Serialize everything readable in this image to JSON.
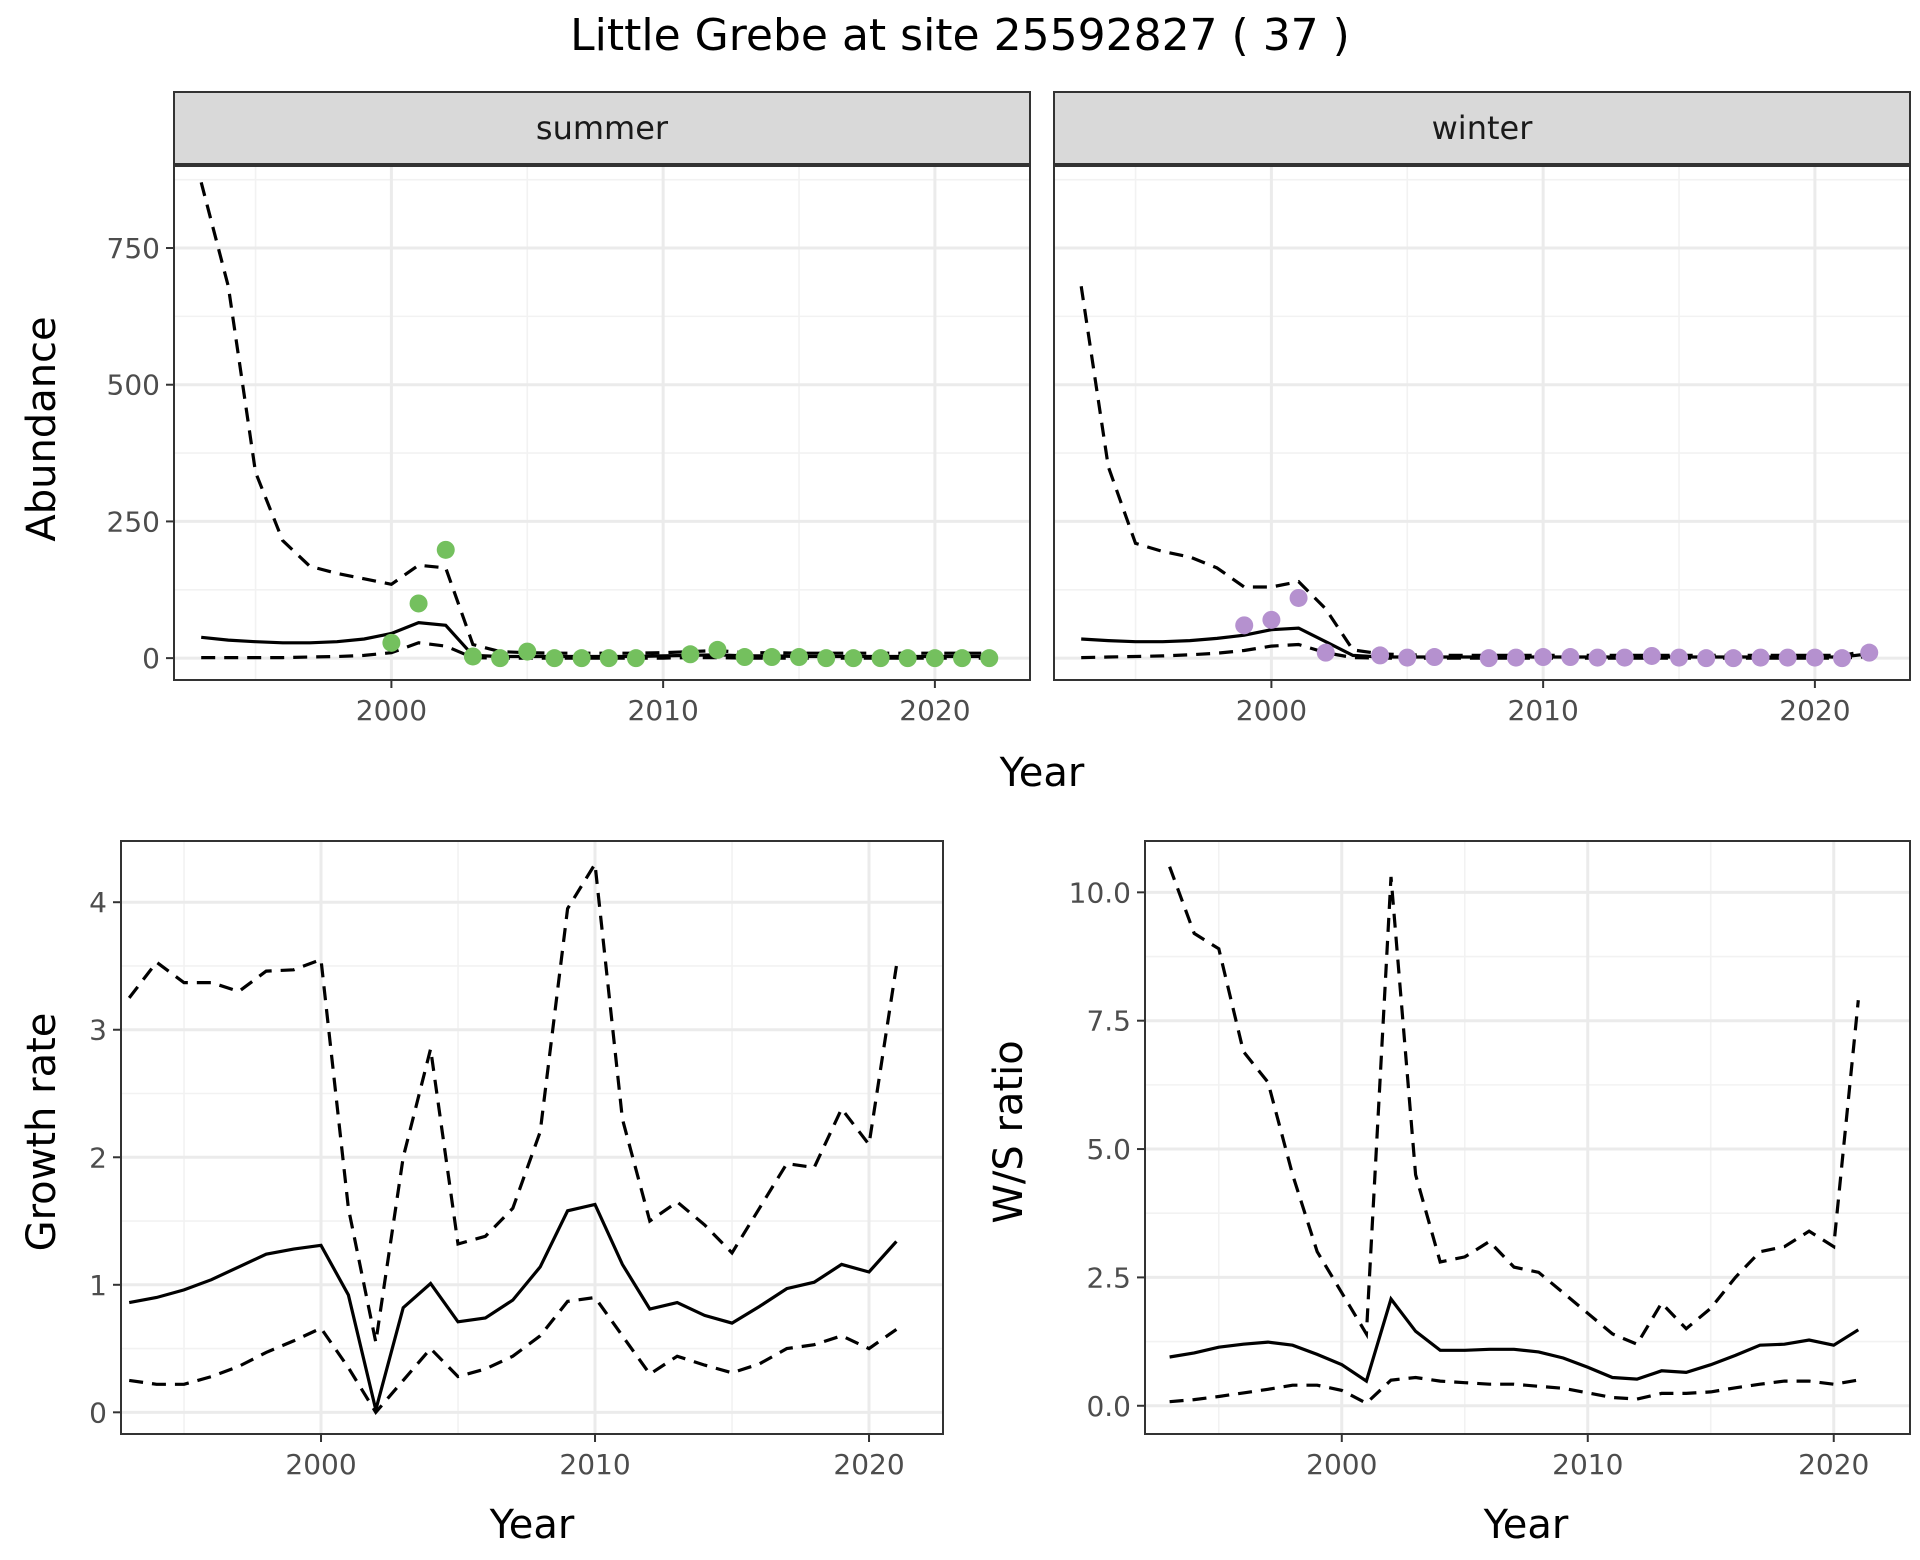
{
  "title": "Little Grebe at site 25592827 ( 37 )",
  "colors": {
    "summer_points": "#74c05e",
    "winter_points": "#b591cf",
    "line": "#000000"
  },
  "chart_data": [
    {
      "type": "line",
      "facet": "summer",
      "xlabel": "Year",
      "ylabel": "Abundance",
      "xlim": [
        1992,
        2023.5
      ],
      "ylim": [
        -40,
        900
      ],
      "xticks": [
        2000,
        2010,
        2020
      ],
      "yticks": [
        0,
        250,
        500,
        750
      ],
      "x": [
        1993,
        1994,
        1995,
        1996,
        1997,
        1998,
        1999,
        2000,
        2001,
        2002,
        2003,
        2004,
        2005,
        2006,
        2007,
        2008,
        2009,
        2010,
        2011,
        2012,
        2013,
        2014,
        2015,
        2016,
        2017,
        2018,
        2019,
        2020,
        2021,
        2022
      ],
      "series": [
        {
          "values": [
            38,
            33,
            30,
            28,
            28,
            30,
            35,
            45,
            65,
            60,
            5,
            3,
            3,
            3,
            3,
            3,
            3,
            4,
            5,
            6,
            4,
            4,
            3,
            3,
            3,
            3,
            3,
            3,
            3,
            3
          ],
          "style": "solid"
        },
        {
          "values": [
            870,
            680,
            340,
            215,
            168,
            155,
            145,
            135,
            170,
            165,
            25,
            12,
            10,
            9,
            9,
            9,
            9,
            10,
            12,
            14,
            10,
            10,
            9,
            9,
            9,
            9,
            9,
            9,
            9,
            9
          ],
          "style": "dashed"
        },
        {
          "values": [
            1,
            1,
            1,
            1,
            2,
            3,
            5,
            10,
            28,
            22,
            1,
            0,
            0,
            0,
            0,
            0,
            0,
            0,
            1,
            1,
            0,
            0,
            0,
            0,
            0,
            0,
            0,
            0,
            0,
            0
          ],
          "style": "dashed"
        }
      ],
      "points": {
        "x": [
          2000,
          2001,
          2002,
          2003,
          2004,
          2005,
          2006,
          2007,
          2008,
          2009,
          2011,
          2012,
          2013,
          2014,
          2015,
          2016,
          2017,
          2018,
          2019,
          2020,
          2021,
          2022
        ],
        "y": [
          28,
          100,
          198,
          3,
          0,
          12,
          0,
          0,
          0,
          0,
          7,
          15,
          2,
          2,
          2,
          0,
          0,
          0,
          0,
          0,
          0,
          0
        ]
      }
    },
    {
      "type": "line",
      "facet": "winter",
      "xlabel": "Year",
      "ylabel": "Abundance",
      "xlim": [
        1992,
        2023.5
      ],
      "ylim": [
        -40,
        900
      ],
      "xticks": [
        2000,
        2010,
        2020
      ],
      "yticks": [
        0,
        250,
        500,
        750
      ],
      "x": [
        1993,
        1994,
        1995,
        1996,
        1997,
        1998,
        1999,
        2000,
        2001,
        2002,
        2003,
        2004,
        2005,
        2006,
        2007,
        2008,
        2009,
        2010,
        2011,
        2012,
        2013,
        2014,
        2015,
        2016,
        2017,
        2018,
        2019,
        2020,
        2021,
        2022
      ],
      "series": [
        {
          "values": [
            35,
            32,
            30,
            30,
            32,
            36,
            42,
            52,
            55,
            30,
            5,
            2,
            2,
            2,
            2,
            2,
            2,
            2,
            2,
            2,
            2,
            2,
            2,
            2,
            2,
            2,
            2,
            2,
            2,
            8
          ],
          "style": "solid"
        },
        {
          "values": [
            680,
            350,
            210,
            195,
            185,
            165,
            130,
            130,
            140,
            90,
            15,
            8,
            6,
            5,
            5,
            5,
            5,
            5,
            5,
            5,
            5,
            5,
            5,
            5,
            5,
            5,
            5,
            5,
            5,
            14
          ],
          "style": "dashed"
        },
        {
          "values": [
            1,
            2,
            3,
            4,
            6,
            9,
            14,
            22,
            25,
            10,
            1,
            0,
            0,
            0,
            0,
            0,
            0,
            0,
            0,
            0,
            0,
            0,
            0,
            0,
            0,
            0,
            0,
            0,
            0,
            3
          ],
          "style": "dashed"
        }
      ],
      "points": {
        "x": [
          1999,
          2000,
          2001,
          2002,
          2004,
          2005,
          2006,
          2008,
          2009,
          2010,
          2011,
          2012,
          2013,
          2014,
          2015,
          2016,
          2017,
          2018,
          2019,
          2020,
          2021,
          2022
        ],
        "y": [
          60,
          70,
          110,
          10,
          5,
          1,
          2,
          0,
          1,
          2,
          2,
          1,
          1,
          4,
          1,
          0,
          0,
          1,
          1,
          1,
          0,
          10
        ]
      }
    },
    {
      "type": "line",
      "xlabel": "Year",
      "ylabel": "Growth rate",
      "xlim": [
        1992.7,
        2022.7
      ],
      "ylim": [
        -0.17,
        4.48
      ],
      "xticks": [
        2000,
        2010,
        2020
      ],
      "yticks": [
        0,
        1,
        2,
        3,
        4
      ],
      "x": [
        1993,
        1994,
        1995,
        1996,
        1997,
        1998,
        1999,
        2000,
        2001,
        2002,
        2003,
        2004,
        2005,
        2006,
        2007,
        2008,
        2009,
        2010,
        2011,
        2012,
        2013,
        2014,
        2015,
        2016,
        2017,
        2018,
        2019,
        2020,
        2021
      ],
      "series": [
        {
          "values": [
            0.86,
            0.9,
            0.96,
            1.04,
            1.14,
            1.24,
            1.28,
            1.31,
            0.92,
            0.02,
            0.82,
            1.01,
            0.71,
            0.74,
            0.88,
            1.14,
            1.58,
            1.63,
            1.16,
            0.81,
            0.86,
            0.76,
            0.7,
            0.83,
            0.97,
            1.02,
            1.16,
            1.1,
            1.34
          ],
          "style": "solid"
        },
        {
          "values": [
            3.25,
            3.53,
            3.37,
            3.37,
            3.3,
            3.46,
            3.47,
            3.55,
            1.6,
            0.55,
            2.0,
            2.85,
            1.32,
            1.38,
            1.6,
            2.2,
            3.95,
            4.3,
            2.3,
            1.5,
            1.65,
            1.47,
            1.25,
            1.6,
            1.95,
            1.92,
            2.38,
            2.1,
            3.5
          ],
          "style": "dashed"
        },
        {
          "values": [
            0.25,
            0.22,
            0.22,
            0.28,
            0.36,
            0.47,
            0.56,
            0.66,
            0.35,
            0.0,
            0.25,
            0.5,
            0.28,
            0.34,
            0.44,
            0.6,
            0.87,
            0.9,
            0.6,
            0.3,
            0.44,
            0.37,
            0.31,
            0.38,
            0.5,
            0.53,
            0.6,
            0.5,
            0.65
          ],
          "style": "dashed"
        }
      ]
    },
    {
      "type": "line",
      "xlabel": "Year",
      "ylabel": "W/S ratio",
      "xlim": [
        1992,
        2023.1
      ],
      "ylim": [
        -0.55,
        11.0
      ],
      "xticks": [
        2000,
        2010,
        2020
      ],
      "yticks": [
        0.0,
        2.5,
        5.0,
        7.5,
        10.0
      ],
      "ytick_labels": [
        "0.0",
        "2.5",
        "5.0",
        "7.5",
        "10.0"
      ],
      "x": [
        1993,
        1994,
        1995,
        1996,
        1997,
        1998,
        1999,
        2000,
        2001,
        2002,
        2003,
        2004,
        2005,
        2006,
        2007,
        2008,
        2009,
        2010,
        2011,
        2012,
        2013,
        2014,
        2015,
        2016,
        2017,
        2018,
        2019,
        2020,
        2021
      ],
      "series": [
        {
          "values": [
            0.95,
            1.03,
            1.14,
            1.2,
            1.24,
            1.18,
            1.0,
            0.8,
            0.48,
            2.08,
            1.45,
            1.08,
            1.08,
            1.1,
            1.1,
            1.05,
            0.93,
            0.75,
            0.55,
            0.52,
            0.68,
            0.65,
            0.8,
            0.98,
            1.18,
            1.2,
            1.28,
            1.18,
            1.48
          ],
          "style": "solid"
        },
        {
          "values": [
            10.5,
            9.2,
            8.9,
            6.9,
            6.3,
            4.5,
            3.0,
            2.2,
            1.4,
            10.3,
            4.5,
            2.8,
            2.9,
            3.2,
            2.7,
            2.6,
            2.2,
            1.8,
            1.4,
            1.2,
            2.0,
            1.5,
            1.9,
            2.5,
            3.0,
            3.1,
            3.4,
            3.1,
            7.9
          ],
          "style": "dashed"
        },
        {
          "values": [
            0.08,
            0.12,
            0.18,
            0.25,
            0.32,
            0.4,
            0.4,
            0.3,
            0.05,
            0.5,
            0.55,
            0.48,
            0.45,
            0.42,
            0.42,
            0.38,
            0.34,
            0.25,
            0.16,
            0.13,
            0.24,
            0.24,
            0.27,
            0.35,
            0.42,
            0.48,
            0.48,
            0.42,
            0.5
          ],
          "style": "dashed"
        }
      ]
    }
  ]
}
